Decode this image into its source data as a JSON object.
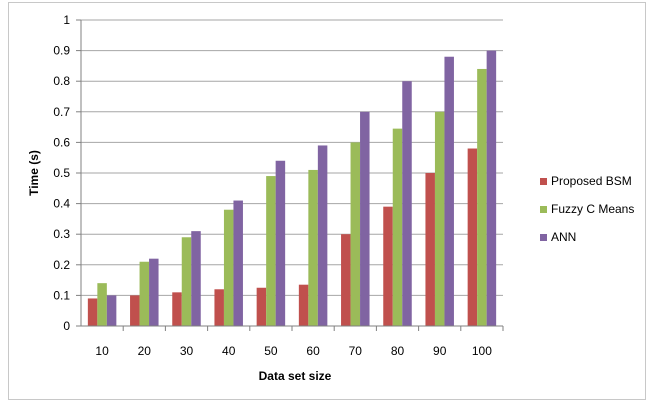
{
  "chart_data": {
    "type": "bar",
    "title": "",
    "xlabel": "Data set size",
    "ylabel": "Time  (s)",
    "categories": [
      "10",
      "20",
      "30",
      "40",
      "50",
      "60",
      "70",
      "80",
      "90",
      "100"
    ],
    "ylim": [
      0,
      1
    ],
    "yticks": [
      "0",
      "0.1",
      "0.2",
      "0.3",
      "0.4",
      "0.5",
      "0.6",
      "0.7",
      "0.8",
      "0.9",
      "1"
    ],
    "grid": true,
    "legend_position": "right",
    "series": [
      {
        "name": "Proposed BSM",
        "color": "#c0504d",
        "values": [
          0.09,
          0.1,
          0.11,
          0.12,
          0.125,
          0.135,
          0.3,
          0.39,
          0.5,
          0.58
        ]
      },
      {
        "name": "Fuzzy C Means",
        "color": "#9bbb59",
        "values": [
          0.14,
          0.21,
          0.29,
          0.38,
          0.49,
          0.51,
          0.6,
          0.645,
          0.7,
          0.84
        ]
      },
      {
        "name": "ANN",
        "color": "#8064a2",
        "values": [
          0.1,
          0.22,
          0.31,
          0.41,
          0.54,
          0.59,
          0.7,
          0.8,
          0.88,
          0.9
        ]
      }
    ]
  }
}
